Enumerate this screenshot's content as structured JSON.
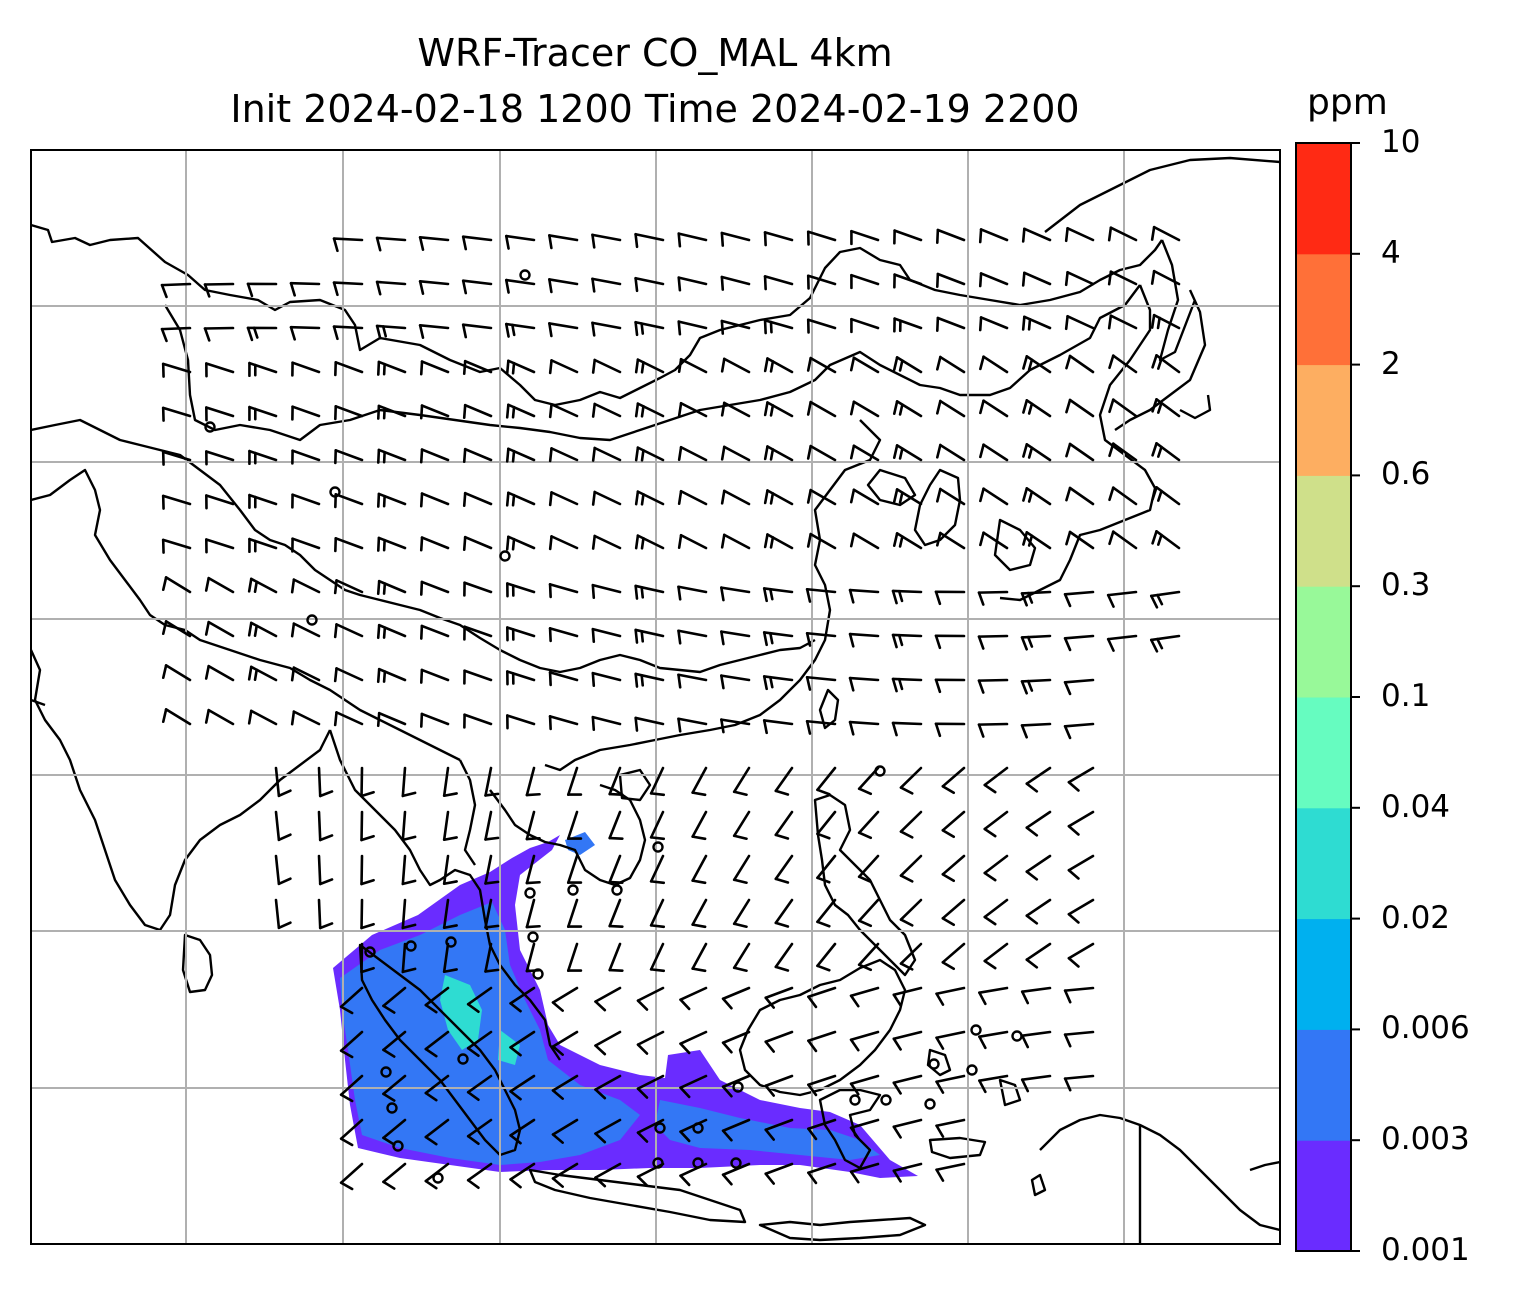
{
  "title": {
    "line1": "WRF-Tracer CO_MAL 4km",
    "line2": "Init 2024-02-18 1200 Time 2024-02-19 2200"
  },
  "colorbar": {
    "unit": "ppm",
    "levels": [
      "0.001",
      "0.003",
      "0.006",
      "0.02",
      "0.04",
      "0.1",
      "0.3",
      "0.6",
      "2",
      "4",
      "10"
    ],
    "colors": [
      "#6a2cff",
      "#3377f5",
      "#00b0ef",
      "#2edcd2",
      "#66fcc0",
      "#98f999",
      "#cfe08a",
      "#fdae61",
      "#ff7038",
      "#ff2a14"
    ]
  },
  "map": {
    "gridline_color": "#b0b0b0",
    "coastline_color": "#000000",
    "plume_colors": {
      "low": "#6a2cff",
      "mid": "#3377f5",
      "high": "#2edcd2"
    }
  }
}
